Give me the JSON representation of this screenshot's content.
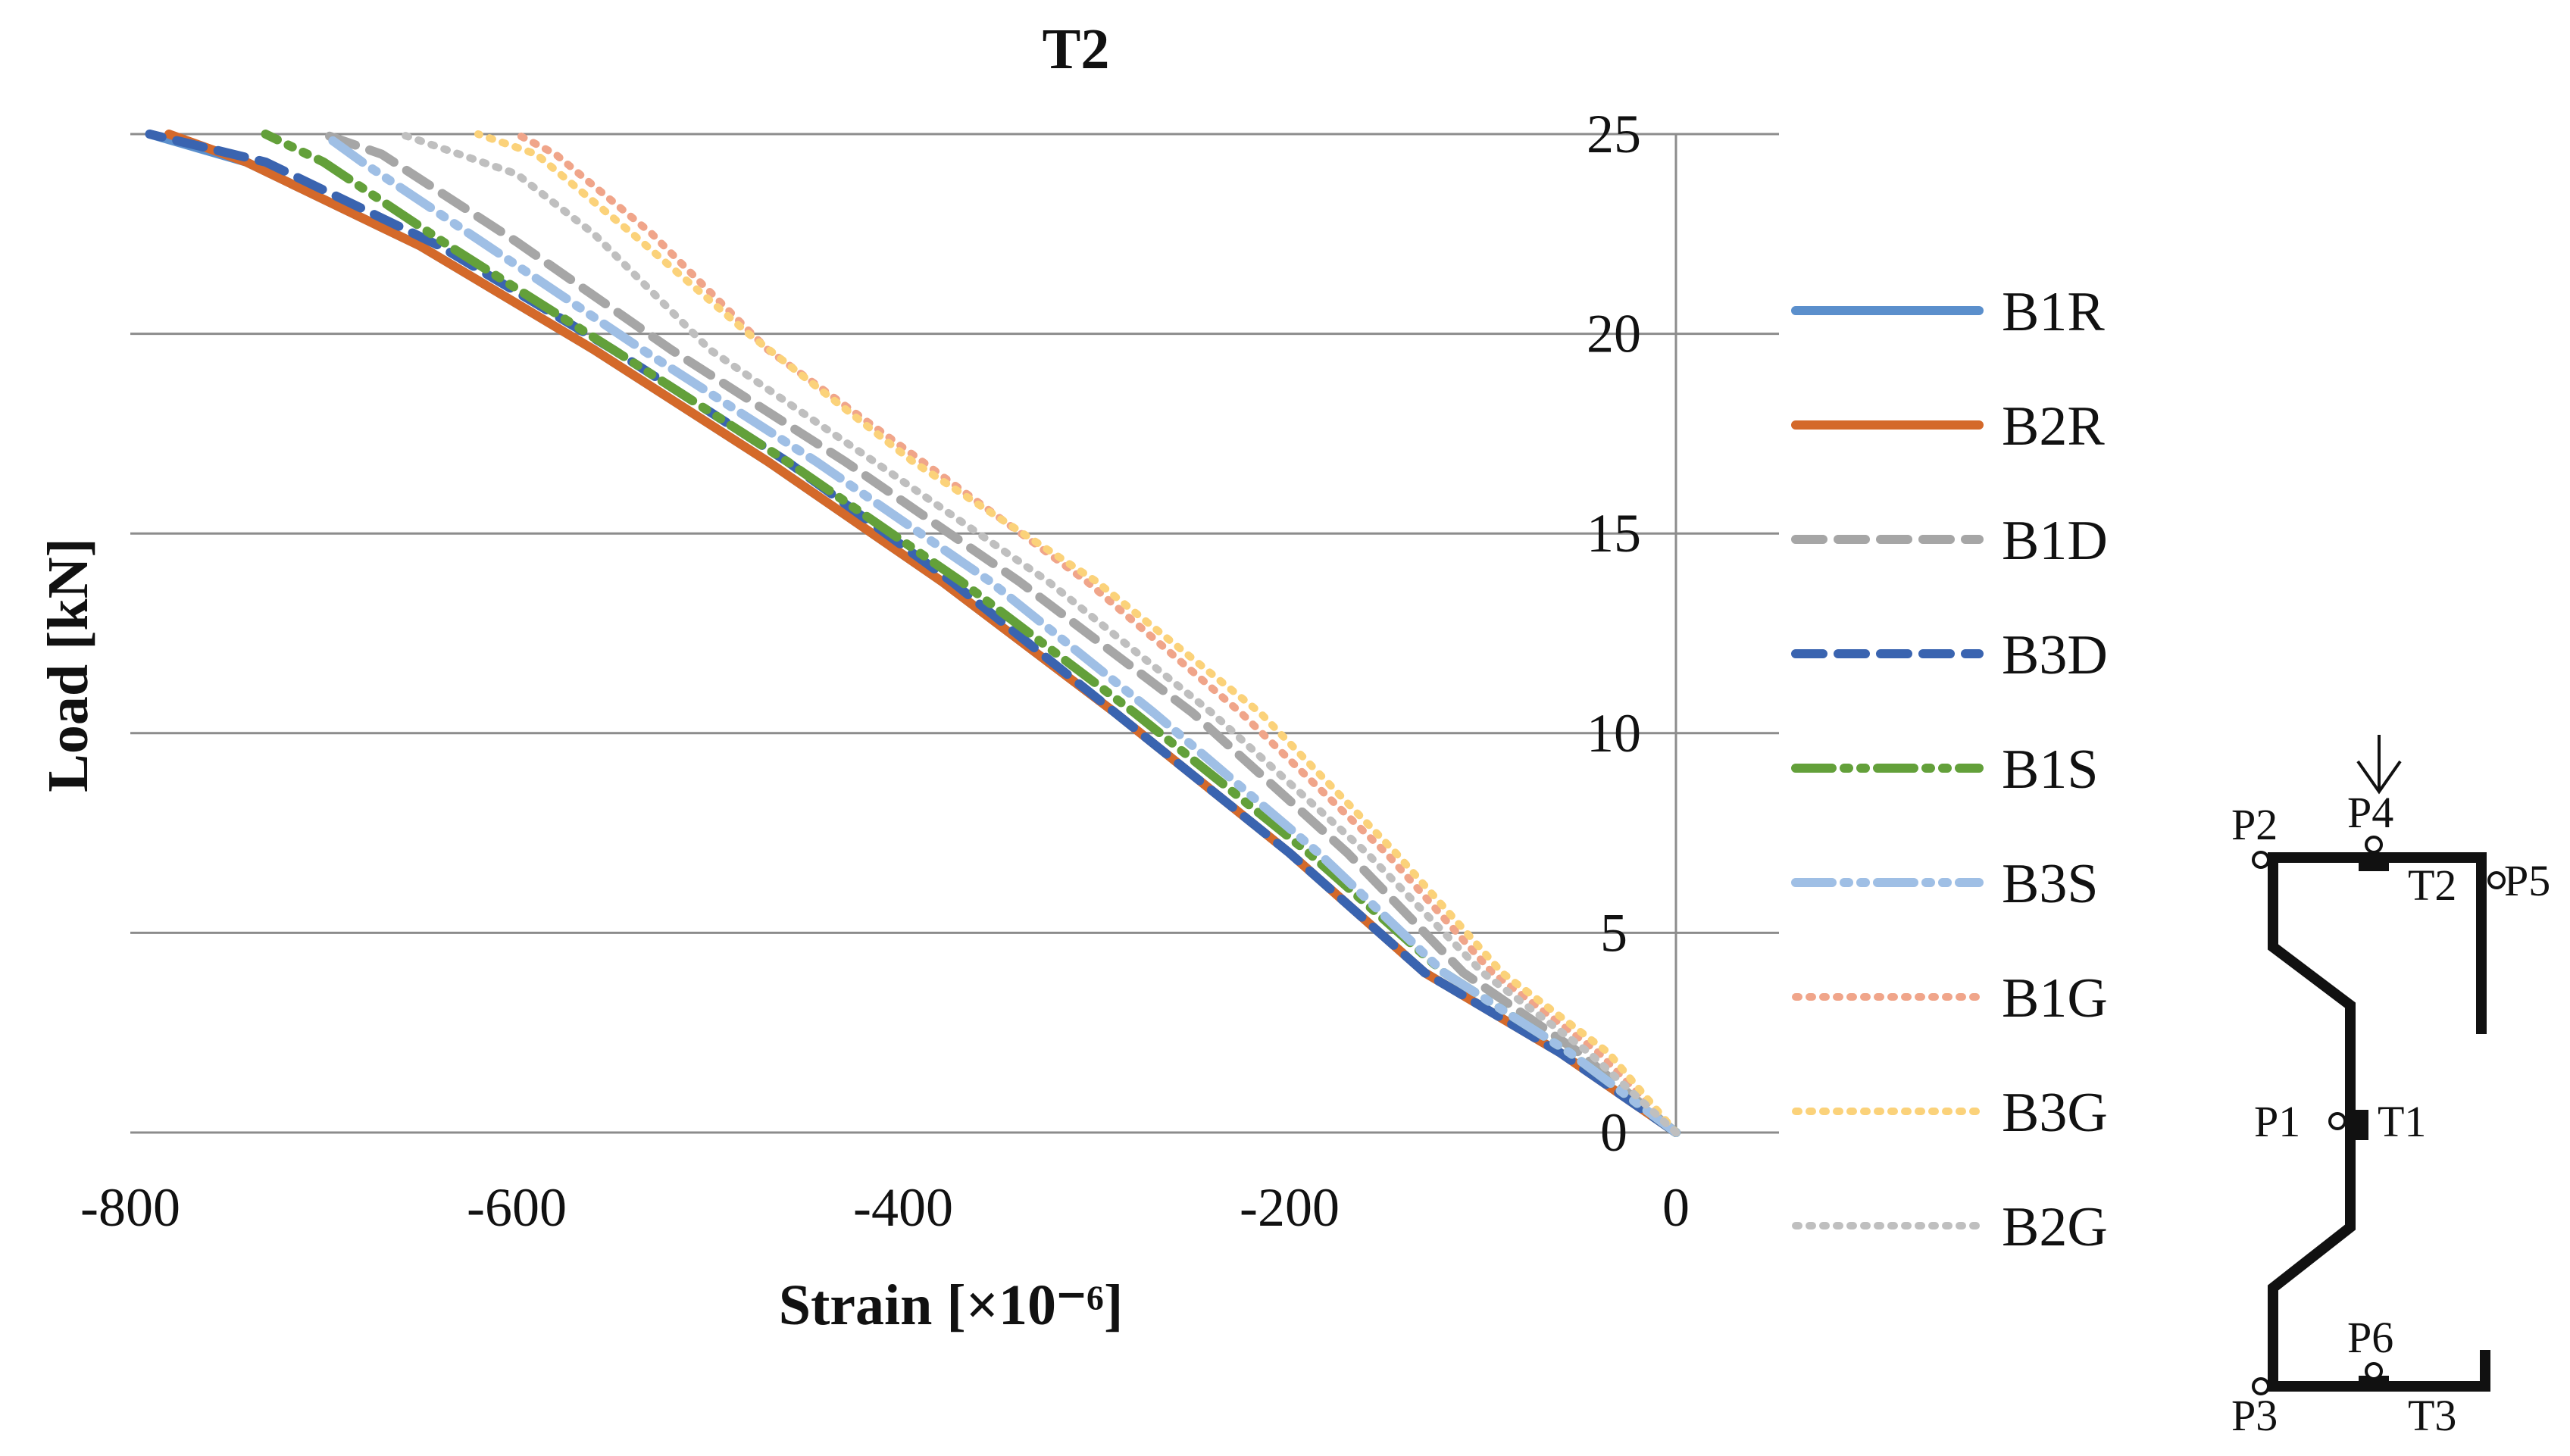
{
  "chart_data": {
    "type": "line",
    "title": "T2",
    "xlabel": "Strain [×10⁻⁶]",
    "ylabel": "Load [kN]",
    "xlim": [
      -800,
      0
    ],
    "ylim": [
      0,
      25
    ],
    "x_ticks": [
      "-800",
      "-600",
      "-400",
      "-200",
      "0"
    ],
    "y_ticks": [
      "0",
      "5",
      "10",
      "15",
      "20",
      "25"
    ],
    "grid": "horizontal",
    "legend_position": "right",
    "series": [
      {
        "name": "B1R",
        "color": "#5b8fcc",
        "style": "solid",
        "points": [
          [
            0,
            0
          ],
          [
            -60,
            2
          ],
          [
            -130,
            4
          ],
          [
            -200,
            7
          ],
          [
            -290,
            10.5
          ],
          [
            -380,
            13.8
          ],
          [
            -470,
            16.8
          ],
          [
            -560,
            19.6
          ],
          [
            -650,
            22.2
          ],
          [
            -740,
            24.3
          ],
          [
            -790,
            25
          ]
        ]
      },
      {
        "name": "B2R",
        "color": "#d4692a",
        "style": "solid",
        "points": [
          [
            0,
            0
          ],
          [
            -60,
            2
          ],
          [
            -130,
            4
          ],
          [
            -200,
            7
          ],
          [
            -290,
            10.5
          ],
          [
            -380,
            13.8
          ],
          [
            -470,
            16.8
          ],
          [
            -560,
            19.6
          ],
          [
            -650,
            22.2
          ],
          [
            -740,
            24.3
          ],
          [
            -780,
            25
          ]
        ]
      },
      {
        "name": "B1D",
        "color": "#a6a6a6",
        "style": "dashed",
        "points": [
          [
            0,
            0
          ],
          [
            -50,
            2
          ],
          [
            -110,
            4
          ],
          [
            -170,
            7
          ],
          [
            -250,
            10.5
          ],
          [
            -340,
            13.8
          ],
          [
            -430,
            16.8
          ],
          [
            -520,
            19.6
          ],
          [
            -600,
            22.3
          ],
          [
            -670,
            24.5
          ],
          [
            -700,
            25
          ]
        ]
      },
      {
        "name": "B3D",
        "color": "#3a64b0",
        "style": "dashed",
        "points": [
          [
            0,
            0
          ],
          [
            -60,
            2
          ],
          [
            -130,
            4
          ],
          [
            -200,
            7
          ],
          [
            -290,
            10.5
          ],
          [
            -375,
            13.8
          ],
          [
            -460,
            16.8
          ],
          [
            -550,
            19.6
          ],
          [
            -640,
            22.2
          ],
          [
            -730,
            24.3
          ],
          [
            -790,
            25
          ]
        ]
      },
      {
        "name": "B1S",
        "color": "#63a03a",
        "style": "dashdot",
        "points": [
          [
            0,
            0
          ],
          [
            -55,
            2
          ],
          [
            -120,
            4
          ],
          [
            -190,
            7
          ],
          [
            -280,
            10.5
          ],
          [
            -370,
            13.8
          ],
          [
            -460,
            16.8
          ],
          [
            -550,
            19.6
          ],
          [
            -635,
            22.2
          ],
          [
            -700,
            24.3
          ],
          [
            -730,
            25
          ]
        ]
      },
      {
        "name": "B3S",
        "color": "#9fbfe5",
        "style": "dashdot",
        "points": [
          [
            0,
            0
          ],
          [
            -55,
            2
          ],
          [
            -120,
            4
          ],
          [
            -185,
            7
          ],
          [
            -270,
            10.5
          ],
          [
            -355,
            13.8
          ],
          [
            -445,
            16.8
          ],
          [
            -535,
            19.6
          ],
          [
            -615,
            22.2
          ],
          [
            -680,
            24.3
          ],
          [
            -700,
            25
          ]
        ]
      },
      {
        "name": "B1G",
        "color": "#f0a58a",
        "style": "dotted",
        "points": [
          [
            0,
            0
          ],
          [
            -40,
            2
          ],
          [
            -95,
            4
          ],
          [
            -150,
            7
          ],
          [
            -225,
            10.5
          ],
          [
            -305,
            13.8
          ],
          [
            -390,
            16.8
          ],
          [
            -470,
            19.6
          ],
          [
            -530,
            22.5
          ],
          [
            -580,
            24.5
          ],
          [
            -600,
            25
          ]
        ]
      },
      {
        "name": "B3G",
        "color": "#fbd27a",
        "style": "dotted",
        "points": [
          [
            0,
            0
          ],
          [
            -35,
            2
          ],
          [
            -90,
            4
          ],
          [
            -145,
            7
          ],
          [
            -215,
            10.5
          ],
          [
            -300,
            13.8
          ],
          [
            -395,
            16.8
          ],
          [
            -480,
            20
          ],
          [
            -540,
            22.5
          ],
          [
            -590,
            24.5
          ],
          [
            -620,
            25
          ]
        ]
      },
      {
        "name": "B2G",
        "color": "#bfbfbf",
        "style": "dotted",
        "points": [
          [
            0,
            0
          ],
          [
            -45,
            2
          ],
          [
            -100,
            4
          ],
          [
            -160,
            7
          ],
          [
            -240,
            10.5
          ],
          [
            -325,
            13.8
          ],
          [
            -415,
            16.8
          ],
          [
            -500,
            19.6
          ],
          [
            -560,
            22.5
          ],
          [
            -600,
            24
          ],
          [
            -660,
            25
          ]
        ]
      }
    ]
  },
  "diagram": {
    "labels": [
      "P1",
      "T1",
      "P2",
      "P3",
      "P4",
      "P5",
      "P6",
      "T2",
      "T3"
    ]
  }
}
